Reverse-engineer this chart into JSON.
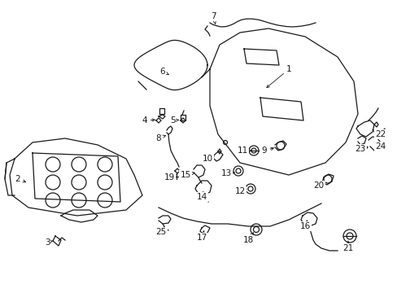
{
  "bg_color": "#ffffff",
  "line_color": "#1a1a1a",
  "fig_width": 4.89,
  "fig_height": 3.6,
  "dpi": 100,
  "label_fontsize": 7.5,
  "lw": 0.9
}
